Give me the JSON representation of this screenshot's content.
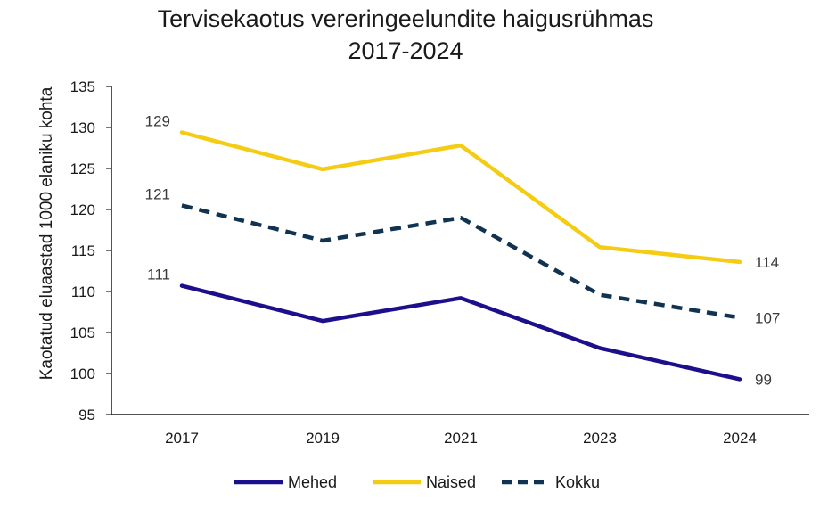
{
  "chart_data": {
    "type": "line",
    "title_lines": [
      "Tervisekaotus vereringeelundite haigusrühmas",
      "2017-2024"
    ],
    "ylabel": "Kaotatud eluaastad 1000 elaniku kohta",
    "xlabel": "",
    "categories": [
      "2017",
      "2019",
      "2021",
      "2023",
      "2024"
    ],
    "ylim": [
      95,
      135
    ],
    "yticks": [
      95,
      100,
      105,
      110,
      115,
      120,
      125,
      130,
      135
    ],
    "grid": false,
    "legend_position": "bottom",
    "series": [
      {
        "name": "Mehed",
        "values": [
          110.7,
          106.4,
          109.2,
          103.1,
          99.3
        ],
        "color": "#1c0f8c",
        "style": "solid",
        "labels": [
          {
            "index": 0,
            "text": "111",
            "side": "left"
          },
          {
            "index": 4,
            "text": "99",
            "side": "right"
          }
        ]
      },
      {
        "name": "Naised",
        "values": [
          129.4,
          124.9,
          127.8,
          115.4,
          113.6
        ],
        "color": "#f5cc14",
        "style": "solid",
        "labels": [
          {
            "index": 0,
            "text": "129",
            "side": "left"
          },
          {
            "index": 4,
            "text": "114",
            "side": "right"
          }
        ]
      },
      {
        "name": "Kokku",
        "values": [
          120.5,
          116.2,
          119.0,
          109.6,
          106.8
        ],
        "color": "#0f3350",
        "style": "dashed",
        "labels": [
          {
            "index": 0,
            "text": "121",
            "side": "left"
          },
          {
            "index": 4,
            "text": "107",
            "side": "right"
          }
        ]
      }
    ]
  }
}
